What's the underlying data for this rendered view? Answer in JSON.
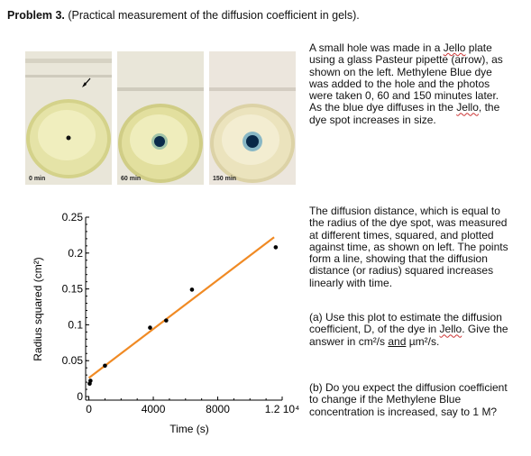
{
  "title": {
    "bold": "Problem 3.",
    "rest": " (Practical measurement of the diffusion coefficient in gels)."
  },
  "photos": [
    {
      "caption": "0 min"
    },
    {
      "caption": "60 min"
    },
    {
      "caption": "150 min"
    }
  ],
  "text": {
    "p1": [
      "A small hole was made in a ",
      "Jello",
      " plate using a glass Pasteur pipette (arrow), as shown on the left. Methylene Blue dye was added to the hole and the photos were taken 0, 60 and 150 minutes later. As the blue dye diffuses in the ",
      "Jello",
      ", the dye spot increases in size."
    ],
    "p2": "The diffusion distance, which is equal to the radius of the dye spot, was measured at different times, squared, and plotted against time, as shown on left. The points form a line, showing that the diffusion distance (or radius) squared increases linearly with time.",
    "p3": [
      "(a) Use this plot to estimate the diffusion coefficient, D, of the dye in ",
      "Jello",
      ". Give the answer in cm²/s ",
      "and",
      " µm²/s."
    ],
    "p4": "(b) Do you expect the diffusion coefficient to change if the Methylene Blue concentration is increased, say to 1 M?"
  },
  "chart_data": {
    "type": "scatter",
    "xlabel": "Time (s)",
    "ylabel": "Radius squared (cm²)",
    "xlim": [
      -200,
      12000
    ],
    "ylim": [
      -0.005,
      0.25
    ],
    "x_ticks": [
      "0",
      "4000",
      "8000",
      "1.2 10⁴"
    ],
    "y_ticks": [
      "0",
      "0.05",
      "0.1",
      "0.15",
      "0.2",
      "0.25"
    ],
    "points": [
      {
        "x": 50,
        "y": 0.018
      },
      {
        "x": 100,
        "y": 0.022
      },
      {
        "x": 1000,
        "y": 0.043
      },
      {
        "x": 3800,
        "y": 0.096
      },
      {
        "x": 4800,
        "y": 0.106
      },
      {
        "x": 6400,
        "y": 0.149
      },
      {
        "x": 11600,
        "y": 0.208
      }
    ],
    "fit_line": {
      "x": [
        0,
        11500
      ],
      "y": [
        0.026,
        0.222
      ],
      "color": "#f08a24"
    },
    "point_color": "#000000",
    "grid": false
  }
}
